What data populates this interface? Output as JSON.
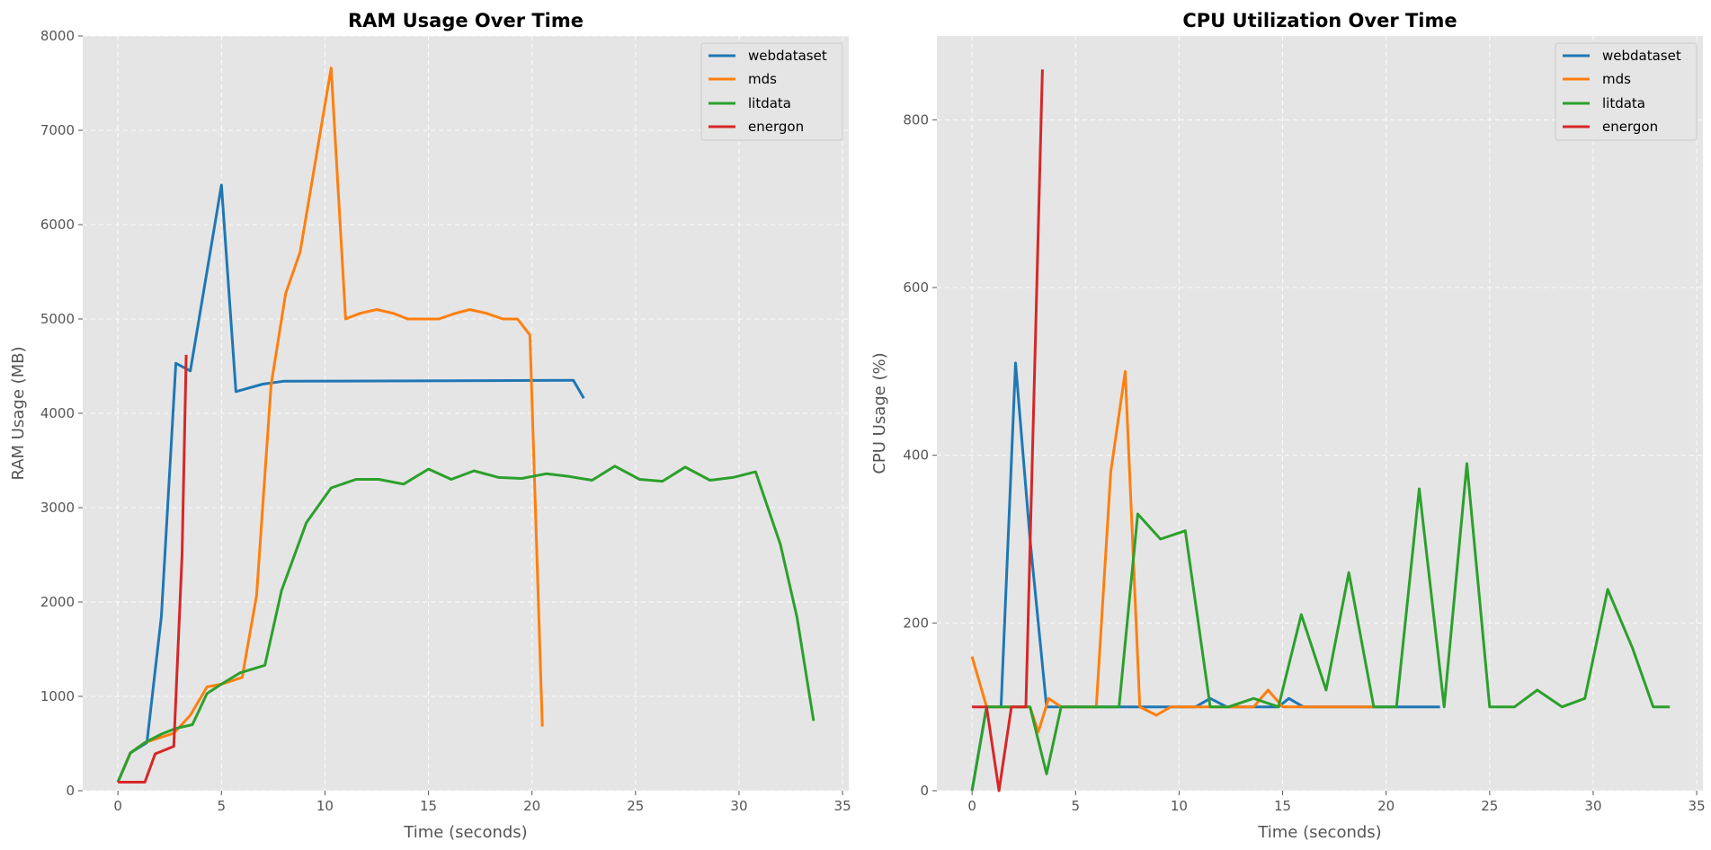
{
  "chart_data": [
    {
      "type": "line",
      "title": "RAM Usage Over Time",
      "xlabel": "Time (seconds)",
      "ylabel": "RAM Usage (MB)",
      "xlim": [
        -1.7,
        35.3
      ],
      "ylim": [
        0,
        8000
      ],
      "xticks": [
        0,
        5,
        10,
        15,
        20,
        25,
        30,
        35
      ],
      "yticks": [
        0,
        1000,
        2000,
        3000,
        4000,
        5000,
        6000,
        7000,
        8000
      ],
      "grid": true,
      "legend": "top-right",
      "series": [
        {
          "name": "webdataset",
          "color": "#1f77b4",
          "x": [
            0,
            0.6,
            1.4,
            2.1,
            2.8,
            3.5,
            5.0,
            5.7,
            7.0,
            8.0,
            22.0,
            22.5
          ],
          "y": [
            90,
            400,
            510,
            1850,
            4530,
            4450,
            6420,
            4230,
            4310,
            4340,
            4350,
            4160
          ]
        },
        {
          "name": "mds",
          "color": "#ff7f0e",
          "x": [
            0,
            0.6,
            1.3,
            2.0,
            2.7,
            3.5,
            4.3,
            5.0,
            6.0,
            6.7,
            7.4,
            8.1,
            8.8,
            10.3,
            11.0,
            11.7,
            12.5,
            13.3,
            14.0,
            14.8,
            15.5,
            16.3,
            17.0,
            17.8,
            18.6,
            19.3,
            19.9,
            20.5
          ],
          "y": [
            90,
            400,
            510,
            560,
            610,
            800,
            1100,
            1130,
            1200,
            2070,
            4300,
            5270,
            5710,
            7660,
            5000,
            5060,
            5100,
            5060,
            5000,
            5000,
            5000,
            5060,
            5100,
            5060,
            5000,
            5000,
            4830,
            680
          ]
        },
        {
          "name": "litdata",
          "color": "#2ca02c",
          "x": [
            0,
            0.6,
            1.3,
            2.1,
            2.8,
            3.6,
            4.3,
            5.0,
            5.9,
            7.1,
            7.9,
            9.1,
            10.3,
            11.5,
            12.6,
            13.8,
            15.0,
            16.1,
            17.2,
            18.4,
            19.5,
            20.7,
            21.8,
            22.9,
            24.0,
            25.2,
            26.3,
            27.4,
            28.6,
            29.7,
            30.8,
            32.0,
            32.8,
            33.6
          ],
          "y": [
            90,
            400,
            510,
            600,
            660,
            700,
            1030,
            1130,
            1250,
            1330,
            2120,
            2840,
            3210,
            3300,
            3300,
            3250,
            3410,
            3300,
            3390,
            3320,
            3310,
            3360,
            3330,
            3290,
            3440,
            3300,
            3280,
            3430,
            3290,
            3320,
            3380,
            2610,
            1840,
            740
          ]
        },
        {
          "name": "energon",
          "color": "#d62728",
          "x": [
            0,
            0.6,
            1.3,
            1.8,
            2.7,
            3.1,
            3.3
          ],
          "y": [
            90,
            90,
            90,
            390,
            470,
            2500,
            4620
          ]
        }
      ]
    },
    {
      "type": "line",
      "title": "CPU Utilization Over Time",
      "xlabel": "Time (seconds)",
      "ylabel": "CPU Usage (%)",
      "xlim": [
        -1.7,
        35.3
      ],
      "ylim": [
        0,
        900
      ],
      "xticks": [
        0,
        5,
        10,
        15,
        20,
        25,
        30,
        35
      ],
      "yticks": [
        0,
        200,
        400,
        600,
        800
      ],
      "grid": true,
      "legend": "top-right",
      "series": [
        {
          "name": "webdataset",
          "color": "#1f77b4",
          "x": [
            0,
            0.7,
            1.4,
            2.1,
            2.8,
            3.6,
            4.3,
            10.8,
            11.5,
            12.3,
            14.8,
            15.3,
            16.0,
            22.6
          ],
          "y": [
            0,
            100,
            100,
            510,
            300,
            100,
            100,
            100,
            110,
            100,
            100,
            110,
            100,
            100
          ]
        },
        {
          "name": "mds",
          "color": "#ff7f0e",
          "x": [
            0,
            0.7,
            1.4,
            2.1,
            2.8,
            3.2,
            3.7,
            4.3,
            6.0,
            6.7,
            7.4,
            8.1,
            8.9,
            9.6,
            10.4,
            11.1,
            12.9,
            13.6,
            14.3,
            15.0,
            15.8,
            19.5
          ],
          "y": [
            160,
            100,
            100,
            100,
            100,
            70,
            110,
            100,
            100,
            380,
            500,
            100,
            90,
            100,
            100,
            100,
            100,
            100,
            120,
            100,
            100,
            100
          ]
        },
        {
          "name": "litdata",
          "color": "#2ca02c",
          "x": [
            0,
            0.7,
            2.8,
            3.6,
            4.3,
            7.1,
            8.0,
            9.1,
            10.3,
            11.5,
            12.4,
            13.6,
            14.8,
            15.9,
            17.1,
            18.2,
            19.4,
            20.5,
            21.6,
            22.8,
            23.9,
            25.0,
            26.2,
            27.3,
            28.5,
            29.6,
            30.7,
            31.9,
            32.9,
            33.7
          ],
          "y": [
            0,
            100,
            100,
            20,
            100,
            100,
            330,
            300,
            310,
            100,
            100,
            110,
            100,
            210,
            120,
            260,
            100,
            100,
            360,
            100,
            390,
            100,
            100,
            120,
            100,
            110,
            240,
            170,
            100,
            100
          ]
        },
        {
          "name": "energon",
          "color": "#d62728",
          "x": [
            0,
            0.7,
            1.3,
            1.9,
            2.6,
            3.4
          ],
          "y": [
            100,
            100,
            0,
            100,
            100,
            860
          ]
        }
      ]
    }
  ]
}
